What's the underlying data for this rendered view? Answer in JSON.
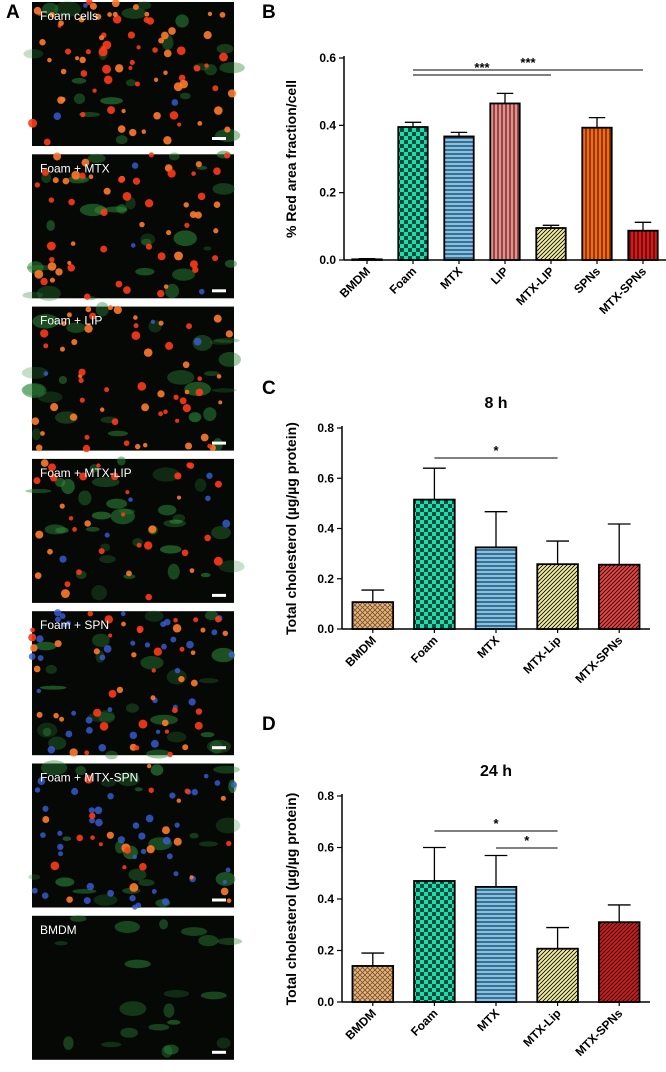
{
  "panels": {
    "a": {
      "letter": "A",
      "labels": [
        "Foam cells",
        "Foam + MTX",
        "Foam + LIP",
        "Foam + MTX-LIP",
        "Foam + SPN",
        "Foam + MTX-SPN",
        "BMDM"
      ]
    },
    "b": {
      "letter": "B"
    },
    "c": {
      "letter": "C"
    },
    "d": {
      "letter": "D"
    }
  },
  "chart_data": [
    {
      "type": "bar",
      "title": "",
      "xlabel": "",
      "ylabel": "% Red area fraction/cell",
      "ylim": [
        0,
        0.6
      ],
      "yticks": [
        0.0,
        0.2,
        0.4,
        0.6
      ],
      "categories": [
        "BMDM",
        "Foam",
        "MTX",
        "LIP",
        "MTX-LIP",
        "SPNs",
        "MTX-SPNs"
      ],
      "values": [
        0.002,
        0.395,
        0.367,
        0.465,
        0.095,
        0.393,
        0.087
      ],
      "errors": [
        0.002,
        0.014,
        0.012,
        0.03,
        0.008,
        0.03,
        0.025
      ],
      "colors": [
        "#ffffff",
        "#14e0b0",
        "#7cc4f0",
        "#f28a8a",
        "#f1ef9e",
        "#ff6a00",
        "#d61a1a"
      ],
      "patterns": [
        "none",
        "checker",
        "hlines",
        "vlines",
        "diag",
        "vlines",
        "vlines"
      ],
      "significance": [
        {
          "from": "Foam",
          "to": "MTX-LIP",
          "label": "***"
        },
        {
          "from": "Foam",
          "to": "MTX-SPNs",
          "label": "***"
        }
      ]
    },
    {
      "type": "bar",
      "title": "8 h",
      "xlabel": "",
      "ylabel": "Total cholesterol (µg/µg protein)",
      "ylim": [
        0,
        0.8
      ],
      "yticks": [
        0.0,
        0.2,
        0.4,
        0.6,
        0.8
      ],
      "categories": [
        "BMDM",
        "Foam",
        "MTX",
        "MTX-Lip",
        "MTX-SPNs"
      ],
      "values": [
        0.107,
        0.515,
        0.325,
        0.258,
        0.256
      ],
      "errors": [
        0.048,
        0.125,
        0.142,
        0.092,
        0.162
      ],
      "colors": [
        "#e3b584",
        "#14e0b0",
        "#7cc4f0",
        "#f1ef9e",
        "#ef4040"
      ],
      "patterns": [
        "crosshatch",
        "checker",
        "hlines",
        "diag",
        "diag"
      ],
      "significance": [
        {
          "from": "Foam",
          "to": "MTX-Lip",
          "label": "*"
        }
      ]
    },
    {
      "type": "bar",
      "title": "24 h",
      "xlabel": "",
      "ylabel": "Total cholesterol (µg/µg protein)",
      "ylim": [
        0,
        0.8
      ],
      "yticks": [
        0.0,
        0.2,
        0.4,
        0.6,
        0.8
      ],
      "categories": [
        "BMDM",
        "Foam",
        "MTX",
        "MTX-Lip",
        "MTX-SPNs"
      ],
      "values": [
        0.14,
        0.47,
        0.447,
        0.207,
        0.31
      ],
      "errors": [
        0.05,
        0.13,
        0.122,
        0.082,
        0.067
      ],
      "colors": [
        "#e3b584",
        "#14e0b0",
        "#7cc4f0",
        "#f1ef9e",
        "#d61a1a"
      ],
      "patterns": [
        "crosshatch",
        "checker",
        "hlines",
        "diag",
        "diag"
      ],
      "significance": [
        {
          "from": "Foam",
          "to": "MTX-Lip",
          "label": "*"
        },
        {
          "from": "MTX",
          "to": "MTX-Lip",
          "label": "*"
        }
      ]
    }
  ]
}
